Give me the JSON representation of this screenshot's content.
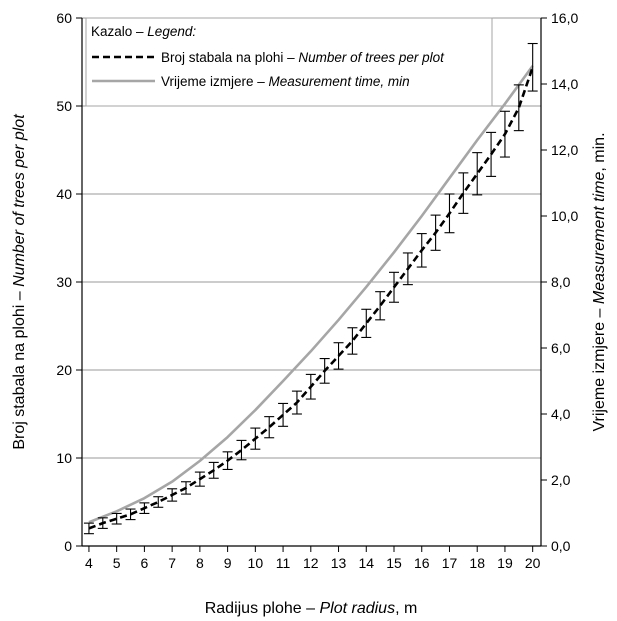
{
  "chart_data": {
    "type": "line",
    "xlabel": {
      "main": "Radijus plohe – ",
      "italic": "Plot radius",
      "tail": ", m"
    },
    "ylabel_left": {
      "main": "Broj stabala na plohi – ",
      "italic": "Number of trees per plot"
    },
    "ylabel_right": {
      "main": "Vrijeme izmjere – ",
      "italic": "Measurement time",
      "tail": ", min."
    },
    "xlim": [
      3.75,
      20.3
    ],
    "ylim_left": [
      0,
      60
    ],
    "ylim_right": [
      0,
      16
    ],
    "x_ticks": [
      4,
      5,
      6,
      7,
      8,
      9,
      10,
      11,
      12,
      13,
      14,
      15,
      16,
      17,
      18,
      19,
      20
    ],
    "y_ticks_left": [
      0,
      10,
      20,
      30,
      40,
      50,
      60
    ],
    "y_ticks_right": [
      0,
      2,
      4,
      6,
      8,
      10,
      12,
      14,
      16
    ],
    "y_tick_labels_right": [
      "0,0",
      "2,0",
      "4,0",
      "6,0",
      "8,0",
      "10,0",
      "12,0",
      "14,0",
      "16,0"
    ],
    "grid": "horizontal",
    "legend": {
      "title": "Kazalo – ",
      "title_italic": "Legend:",
      "placement": "top-left",
      "entries": [
        {
          "main": "Broj stabala na plohi – ",
          "italic": "Number of trees per plot",
          "style": "dashed",
          "color": "#000000"
        },
        {
          "main": "Vrijeme izmjere – ",
          "italic": "Measurement time, min",
          "style": "solid",
          "color": "#a6a6a6"
        }
      ]
    },
    "series": [
      {
        "name": "Broj stabala na plohi – Number of trees per plot",
        "axis": "left",
        "style": "dashed",
        "color": "#000000",
        "x": [
          4,
          4.5,
          5,
          5.5,
          6,
          6.5,
          7,
          7.5,
          8,
          8.5,
          9,
          9.5,
          10,
          10.5,
          11,
          11.5,
          12,
          12.5,
          13,
          13.5,
          14,
          14.5,
          15,
          15.5,
          16,
          16.5,
          17,
          17.5,
          18,
          18.5,
          19,
          19.5,
          20
        ],
        "y": [
          2.0,
          2.6,
          3.1,
          3.6,
          4.3,
          5.0,
          5.8,
          6.6,
          7.6,
          8.6,
          9.7,
          10.9,
          12.2,
          13.5,
          14.9,
          16.3,
          18.1,
          19.9,
          21.6,
          23.3,
          25.3,
          27.3,
          29.4,
          31.5,
          33.6,
          35.6,
          37.8,
          40.1,
          42.3,
          44.5,
          46.8,
          49.8,
          54.4
        ],
        "error": [
          0.6,
          0.6,
          0.6,
          0.6,
          0.6,
          0.6,
          0.7,
          0.7,
          0.8,
          0.9,
          1.0,
          1.1,
          1.2,
          1.2,
          1.3,
          1.3,
          1.4,
          1.4,
          1.5,
          1.5,
          1.6,
          1.6,
          1.7,
          1.8,
          1.9,
          2.0,
          2.2,
          2.3,
          2.4,
          2.5,
          2.6,
          2.6,
          2.7
        ]
      },
      {
        "name": "Vrijeme izmjere – Measurement time, min",
        "axis": "right",
        "style": "solid",
        "color": "#a6a6a6",
        "x": [
          4,
          5,
          6,
          7,
          8,
          9,
          10,
          11,
          12,
          13,
          14,
          15,
          16,
          17,
          18,
          19,
          20
        ],
        "y": [
          0.72,
          1.05,
          1.45,
          1.95,
          2.58,
          3.3,
          4.12,
          5.0,
          5.9,
          6.85,
          7.85,
          8.9,
          10.0,
          11.15,
          12.3,
          13.4,
          14.55
        ]
      }
    ]
  }
}
